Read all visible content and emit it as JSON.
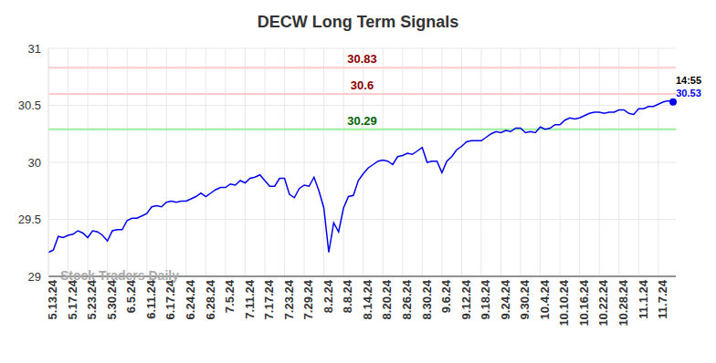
{
  "chart_data": {
    "type": "line",
    "title": "DECW Long Term Signals",
    "categories": [
      "5.13.24",
      null,
      null,
      null,
      "5.17.24",
      null,
      null,
      null,
      "5.23.24",
      null,
      null,
      null,
      "5.30.24",
      null,
      null,
      null,
      "6.5.24",
      null,
      null,
      null,
      "6.11.24",
      null,
      null,
      null,
      "6.17.24",
      null,
      null,
      null,
      "6.24.24",
      null,
      null,
      null,
      "6.28.24",
      null,
      null,
      null,
      "7.5.24",
      null,
      null,
      null,
      "7.11.24",
      null,
      null,
      null,
      "7.17.24",
      null,
      null,
      null,
      "7.23.24",
      null,
      null,
      null,
      "7.29.24",
      null,
      null,
      null,
      "8.2.24",
      null,
      null,
      null,
      "8.8.24",
      null,
      null,
      null,
      "8.14.24",
      null,
      null,
      null,
      "8.20.24",
      null,
      null,
      null,
      "8.26.24",
      null,
      null,
      null,
      "8.30.24",
      null,
      null,
      null,
      "9.6.24",
      null,
      null,
      null,
      "9.12.24",
      null,
      null,
      null,
      "9.18.24",
      null,
      null,
      null,
      "9.24.24",
      null,
      null,
      null,
      "9.30.24",
      null,
      null,
      null,
      "10.4.24",
      null,
      null,
      null,
      "10.10.24",
      null,
      null,
      null,
      "10.16.24",
      null,
      null,
      null,
      "10.22.24",
      null,
      null,
      null,
      "10.28.24",
      null,
      null,
      null,
      "11.1.24",
      null,
      null,
      null,
      "11.7.24",
      null,
      null,
      null
    ],
    "values": [
      29.21,
      29.23,
      29.35,
      29.34,
      29.36,
      29.37,
      29.4,
      29.38,
      29.34,
      29.4,
      29.39,
      29.36,
      29.31,
      29.4,
      29.41,
      29.41,
      29.49,
      29.51,
      29.51,
      29.53,
      29.55,
      29.61,
      29.62,
      29.61,
      29.65,
      29.66,
      29.65,
      29.66,
      29.66,
      29.68,
      29.7,
      29.73,
      29.7,
      29.73,
      29.76,
      29.78,
      29.78,
      29.81,
      29.8,
      29.84,
      29.82,
      29.86,
      29.87,
      29.89,
      29.84,
      29.79,
      29.79,
      29.86,
      29.86,
      29.72,
      29.69,
      29.77,
      29.8,
      29.79,
      29.87,
      29.75,
      29.6,
      29.21,
      29.47,
      29.39,
      29.6,
      29.7,
      29.71,
      29.84,
      29.9,
      29.95,
      29.98,
      30.01,
      30.02,
      30.01,
      29.98,
      30.05,
      30.06,
      30.08,
      30.07,
      30.1,
      30.13,
      30.0,
      30.01,
      30.01,
      29.91,
      30.01,
      30.05,
      30.11,
      30.14,
      30.18,
      30.19,
      30.19,
      30.19,
      30.22,
      30.25,
      30.27,
      30.26,
      30.28,
      30.27,
      30.3,
      30.3,
      30.26,
      30.27,
      30.26,
      30.31,
      30.29,
      30.3,
      30.33,
      30.33,
      30.37,
      30.39,
      30.38,
      30.39,
      30.41,
      30.43,
      30.44,
      30.44,
      30.43,
      30.44,
      30.44,
      30.46,
      30.46,
      30.43,
      30.42,
      30.47,
      30.47,
      30.49,
      30.49,
      30.51,
      30.53,
      30.54,
      30.53
    ],
    "color": "#0000ee",
    "ylim": [
      29,
      31
    ],
    "yticks": [
      29,
      29.5,
      30,
      30.5,
      31
    ],
    "grid": true,
    "reference_lines": [
      {
        "value": 30.83,
        "color": "#ffcccc",
        "label_color": "#8b0000"
      },
      {
        "value": 30.6,
        "color": "#ffcccc",
        "label_color": "#8b0000"
      },
      {
        "value": 30.29,
        "color": "#99ee99",
        "label_color": "#006400"
      }
    ],
    "last_point": {
      "time": "14:55",
      "value": 30.53
    },
    "watermark": "Stock Traders Daily"
  }
}
